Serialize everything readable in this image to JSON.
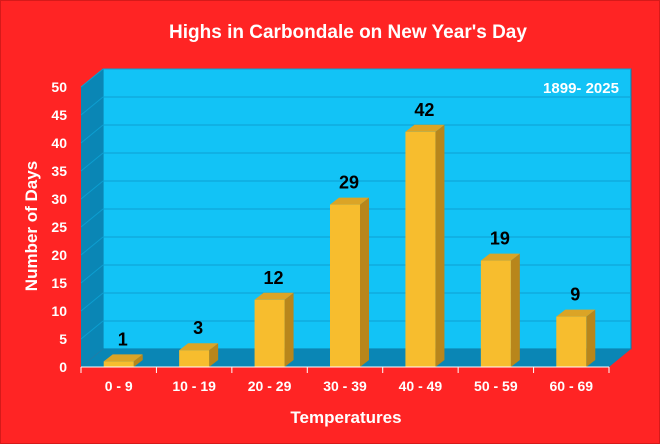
{
  "chart_data": {
    "type": "bar",
    "title": "Highs in Carbondale on New Year's Day",
    "annotation": "1899- 2025",
    "xlabel": "Temperatures",
    "ylabel": "Number of Days",
    "categories": [
      "0 - 9",
      "10 - 19",
      "20 - 29",
      "30 - 39",
      "40 - 49",
      "50 - 59",
      "60 - 69"
    ],
    "values": [
      1,
      3,
      12,
      29,
      42,
      19,
      9
    ],
    "ylim": [
      0,
      50
    ],
    "yticks": [
      0,
      5,
      10,
      15,
      20,
      25,
      30,
      35,
      40,
      45,
      50
    ],
    "grid": true,
    "data_labels": true,
    "colors": {
      "background": "#ff2424",
      "plot_face": "#12c3f6",
      "plot_side": "#0a86b5",
      "plot_floor": "#0a86b5",
      "bar_front": "#f7bd2e",
      "bar_side": "#b8861b",
      "bar_top": "#dba426",
      "text": "#ffffff",
      "data_label": "#000000"
    }
  }
}
